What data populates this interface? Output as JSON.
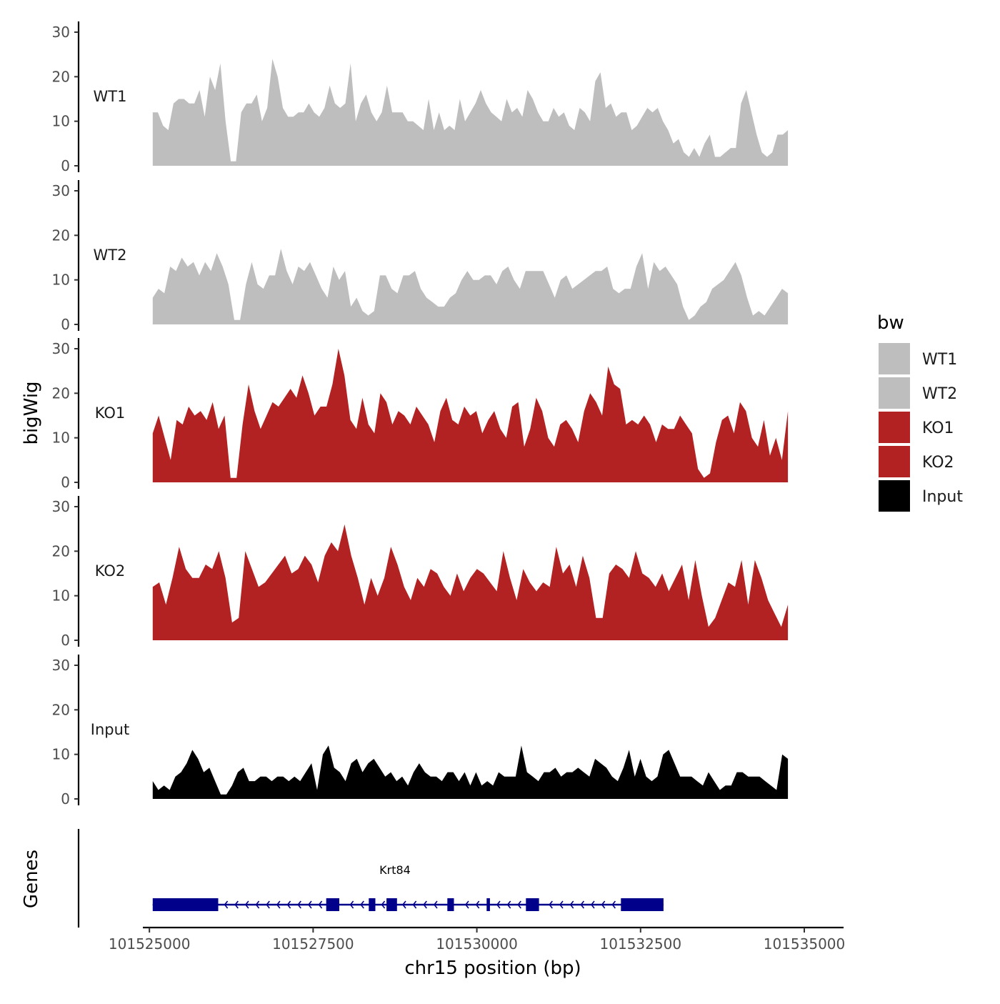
{
  "chart_data": {
    "type": "area",
    "chromosome": "chr15",
    "xlabel": "chr15 position (bp)",
    "ylabel": "bigWig",
    "genes_label": "Genes",
    "xlim": [
      101524900,
      101535600
    ],
    "region": [
      101525050,
      101534750
    ],
    "xticks": [
      101525000,
      101527500,
      101530000,
      101532500,
      101535000
    ],
    "ylim": [
      0,
      30
    ],
    "yticks": [
      0,
      10,
      20,
      30
    ],
    "legend": {
      "title": "bw",
      "position": "right",
      "entries": [
        {
          "name": "WT1",
          "color": "#bebebe"
        },
        {
          "name": "WT2",
          "color": "#bebebe"
        },
        {
          "name": "KO1",
          "color": "#b22222"
        },
        {
          "name": "KO2",
          "color": "#b22222"
        },
        {
          "name": "Input",
          "color": "#000000"
        }
      ]
    },
    "tracks": [
      {
        "name": "WT1",
        "color": "#bebebe",
        "values": [
          12,
          12,
          9,
          8,
          14,
          15,
          15,
          14,
          14,
          17,
          11,
          20,
          17,
          23,
          10,
          1,
          1,
          12,
          14,
          14,
          16,
          10,
          13,
          24,
          20,
          13,
          11,
          11,
          12,
          12,
          14,
          12,
          11,
          13,
          18,
          14,
          13,
          14,
          23,
          10,
          14,
          16,
          12,
          10,
          12,
          18,
          12,
          12,
          12,
          10,
          10,
          9,
          8,
          15,
          8,
          12,
          8,
          9,
          8,
          15,
          10,
          12,
          14,
          17,
          14,
          12,
          11,
          10,
          15,
          12,
          13,
          11,
          17,
          15,
          12,
          10,
          10,
          13,
          11,
          12,
          9,
          8,
          13,
          12,
          10,
          19,
          21,
          13,
          14,
          11,
          12,
          12,
          8,
          9,
          11,
          13,
          12,
          13,
          10,
          8,
          5,
          6,
          3,
          2,
          4,
          2,
          5,
          7,
          2,
          2,
          3,
          4,
          4,
          14,
          17,
          12,
          7,
          3,
          2,
          3,
          7,
          7,
          8
        ]
      },
      {
        "name": "WT2",
        "color": "#bebebe",
        "values": [
          6,
          8,
          7,
          13,
          12,
          15,
          13,
          14,
          11,
          14,
          12,
          16,
          13,
          9,
          1,
          1,
          9,
          14,
          9,
          8,
          11,
          11,
          17,
          12,
          9,
          13,
          12,
          14,
          11,
          8,
          6,
          13,
          10,
          12,
          4,
          6,
          3,
          2,
          3,
          11,
          11,
          8,
          7,
          11,
          11,
          12,
          8,
          6,
          5,
          4,
          4,
          6,
          7,
          10,
          12,
          10,
          10,
          11,
          11,
          9,
          12,
          13,
          10,
          8,
          12,
          12,
          12,
          12,
          9,
          6,
          10,
          11,
          8,
          9,
          10,
          11,
          12,
          12,
          13,
          8,
          7,
          8,
          8,
          13,
          16,
          8,
          14,
          12,
          13,
          11,
          9,
          4,
          1,
          2,
          4,
          5,
          8,
          9,
          10,
          12,
          14,
          11,
          6,
          2,
          3,
          2,
          4,
          6,
          8,
          7
        ]
      },
      {
        "name": "KO1",
        "color": "#b22222",
        "values": [
          11,
          15,
          10,
          5,
          14,
          13,
          17,
          15,
          16,
          14,
          18,
          12,
          15,
          1,
          1,
          13,
          22,
          16,
          12,
          15,
          18,
          17,
          19,
          21,
          19,
          24,
          20,
          15,
          17,
          17,
          22,
          30,
          24,
          14,
          12,
          19,
          13,
          11,
          20,
          18,
          13,
          16,
          15,
          13,
          17,
          15,
          13,
          9,
          16,
          19,
          14,
          13,
          17,
          15,
          16,
          11,
          14,
          16,
          12,
          10,
          17,
          18,
          8,
          12,
          19,
          16,
          10,
          8,
          13,
          14,
          12,
          9,
          16,
          20,
          18,
          15,
          26,
          22,
          21,
          13,
          14,
          13,
          15,
          13,
          9,
          13,
          12,
          12,
          15,
          13,
          11,
          3,
          1,
          2,
          9,
          14,
          15,
          11,
          18,
          16,
          10,
          8,
          14,
          6,
          10,
          5,
          16
        ]
      },
      {
        "name": "KO2",
        "color": "#b22222",
        "values": [
          12,
          13,
          8,
          14,
          21,
          16,
          14,
          14,
          17,
          16,
          20,
          14,
          4,
          5,
          20,
          16,
          12,
          13,
          15,
          17,
          19,
          15,
          16,
          19,
          17,
          13,
          19,
          22,
          20,
          26,
          19,
          14,
          8,
          14,
          10,
          14,
          21,
          17,
          12,
          9,
          14,
          12,
          16,
          15,
          12,
          10,
          15,
          11,
          14,
          16,
          15,
          13,
          11,
          20,
          14,
          9,
          16,
          13,
          11,
          13,
          12,
          21,
          15,
          17,
          12,
          19,
          14,
          5,
          5,
          15,
          17,
          16,
          14,
          20,
          15,
          14,
          12,
          15,
          11,
          14,
          17,
          9,
          18,
          10,
          3,
          5,
          9,
          13,
          12,
          18,
          8,
          18,
          14,
          9,
          6,
          3,
          8
        ]
      },
      {
        "name": "Input",
        "color": "#000000",
        "values": [
          4,
          2,
          3,
          2,
          5,
          6,
          8,
          11,
          9,
          6,
          7,
          4,
          1,
          1,
          3,
          6,
          7,
          4,
          4,
          5,
          5,
          4,
          5,
          5,
          4,
          5,
          4,
          6,
          8,
          2,
          10,
          12,
          7,
          6,
          4,
          8,
          9,
          6,
          8,
          9,
          7,
          5,
          6,
          4,
          5,
          3,
          6,
          8,
          6,
          5,
          5,
          4,
          6,
          6,
          4,
          6,
          3,
          6,
          3,
          4,
          3,
          6,
          5,
          5,
          5,
          12,
          6,
          5,
          4,
          6,
          6,
          7,
          5,
          6,
          6,
          7,
          6,
          5,
          9,
          8,
          7,
          5,
          4,
          7,
          11,
          5,
          9,
          5,
          4,
          5,
          10,
          11,
          8,
          5,
          5,
          5,
          4,
          3,
          6,
          4,
          2,
          3,
          3,
          6,
          6,
          5,
          5,
          5,
          4,
          3,
          2,
          10,
          9
        ]
      }
    ],
    "gene": {
      "name": "Krt84",
      "strand": "-",
      "start": 101525050,
      "end": 101532850,
      "exons": [
        [
          101525050,
          101526050
        ],
        [
          101527700,
          101527900
        ],
        [
          101528350,
          101528450
        ],
        [
          101528620,
          101528780
        ],
        [
          101529550,
          101529650
        ],
        [
          101530150,
          101530200
        ],
        [
          101530750,
          101530950
        ],
        [
          101532200,
          101532850
        ]
      ]
    }
  }
}
